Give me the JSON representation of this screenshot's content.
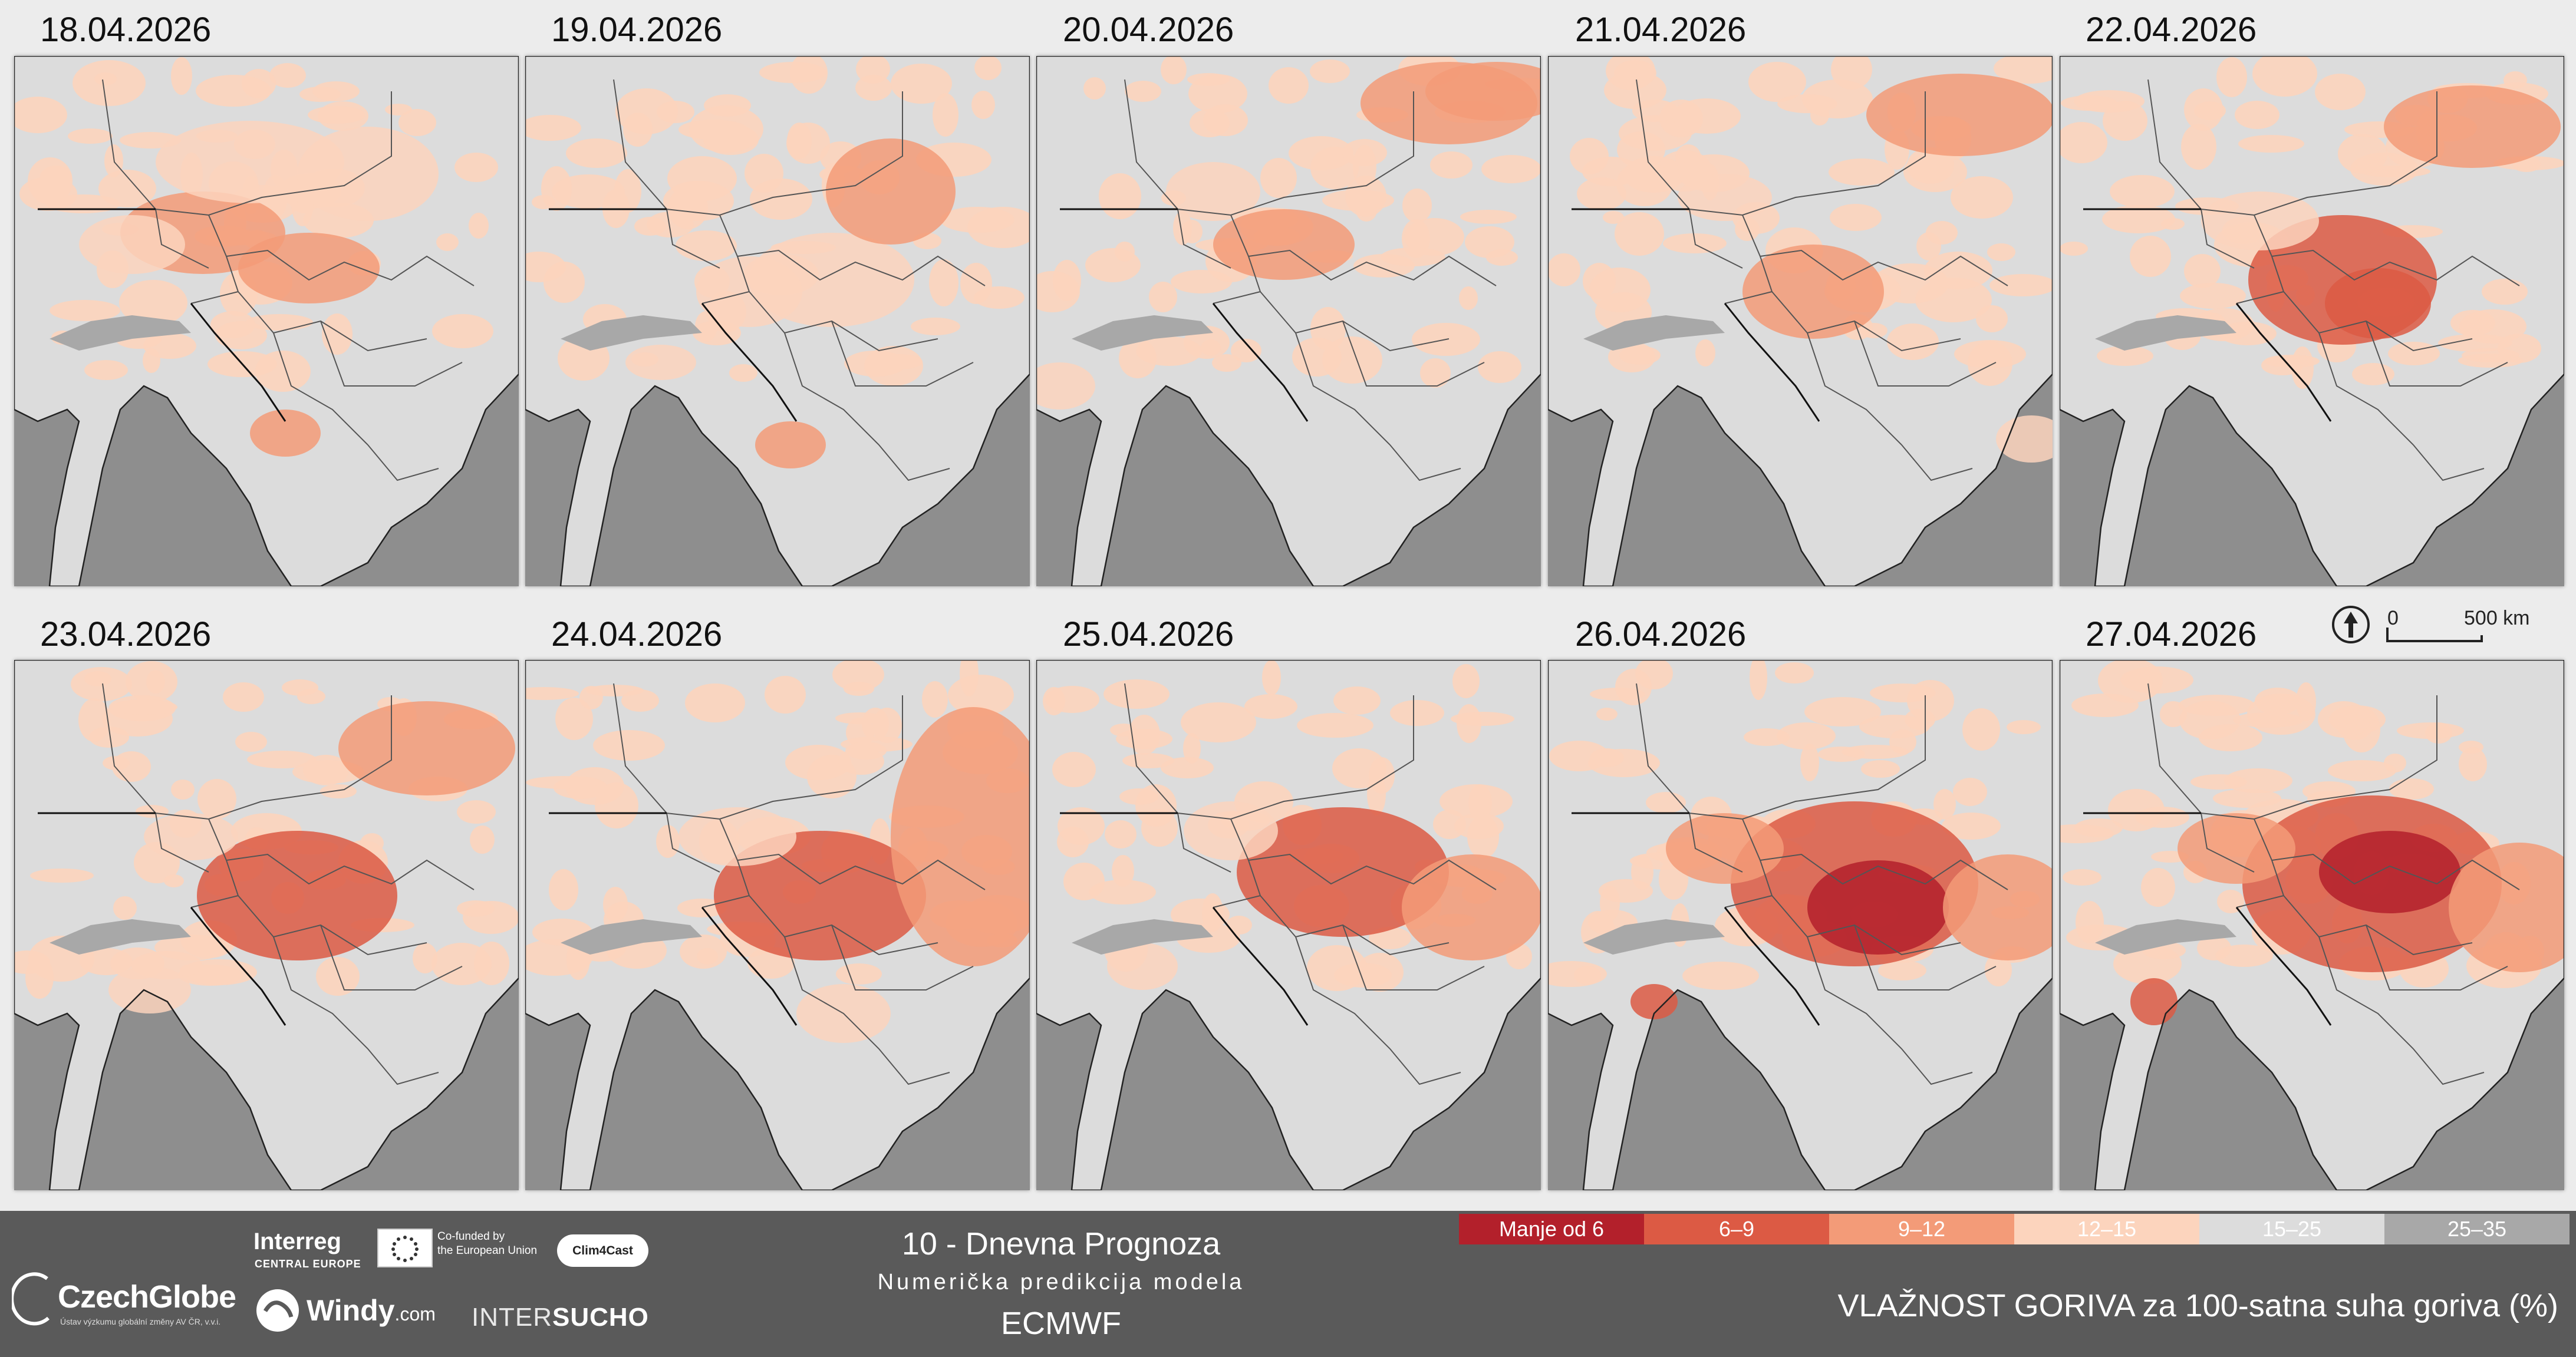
{
  "panels": [
    {
      "date": "18.04.2026"
    },
    {
      "date": "19.04.2026"
    },
    {
      "date": "20.04.2026"
    },
    {
      "date": "21.04.2026"
    },
    {
      "date": "22.04.2026"
    },
    {
      "date": "23.04.2026"
    },
    {
      "date": "24.04.2026"
    },
    {
      "date": "25.04.2026"
    },
    {
      "date": "26.04.2026"
    },
    {
      "date": "27.04.2026"
    }
  ],
  "scale": {
    "zero": "0",
    "distance": "500 km"
  },
  "footer": {
    "org_name": "CzechGlobe",
    "org_sub": "Ústav výzkumu globální změny AV ČR, v.v.i.",
    "interreg": "Interreg",
    "interreg_sub": "CENTRAL EUROPE",
    "eu_line1": "Co-funded by",
    "eu_line2": "the European Union",
    "clim4cast": "Clim4Cast",
    "windy": "Windy",
    "windy_com": ".com",
    "intersucho_a": "INTER",
    "intersucho_b": "SUCHO",
    "title_line1": "10 - Dnevna Prognoza",
    "title_line2": "Numerička predikcija modela",
    "title_line3": "ECMWF",
    "product_title": "VLAŽNOST GORIVA za 100-satna suha goriva (%)"
  },
  "legend": [
    {
      "label": "Manje od 6",
      "color": "#b3202b"
    },
    {
      "label": "6–9",
      "color": "#dc5a44"
    },
    {
      "label": "9–12",
      "color": "#f39b78"
    },
    {
      "label": "12–15",
      "color": "#fcd4bd"
    },
    {
      "label": "15–25",
      "color": "#dcdcdc"
    },
    {
      "label": "25–35",
      "color": "#a8a8a8"
    }
  ]
}
